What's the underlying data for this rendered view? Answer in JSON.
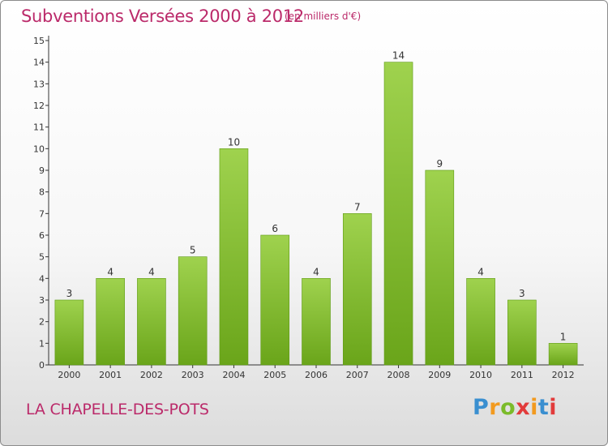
{
  "header": {
    "title": "Subventions Versées 2000 à 2012",
    "unit_note": "(en milliers d'€)"
  },
  "footer": {
    "commune": "LA CHAPELLE-DES-POTS",
    "logo_text": "Proxiti"
  },
  "colors": {
    "title": "#bb2a6a",
    "bar_light": "#9fd24e",
    "bar_dark": "#6aa51a",
    "axis": "#333333"
  },
  "chart_data": {
    "type": "bar",
    "categories": [
      "2000",
      "2001",
      "2002",
      "2003",
      "2004",
      "2005",
      "2006",
      "2007",
      "2008",
      "2009",
      "2010",
      "2011",
      "2012"
    ],
    "values": [
      3,
      4,
      4,
      5,
      10,
      6,
      4,
      7,
      14,
      9,
      4,
      3,
      1
    ],
    "ylim": [
      0,
      15
    ],
    "yticks": [
      0,
      1,
      2,
      3,
      4,
      5,
      6,
      7,
      8,
      9,
      10,
      11,
      12,
      13,
      14,
      15
    ],
    "title": "Subventions Versées 2000 à 2012",
    "grid": false,
    "legend": "none"
  }
}
